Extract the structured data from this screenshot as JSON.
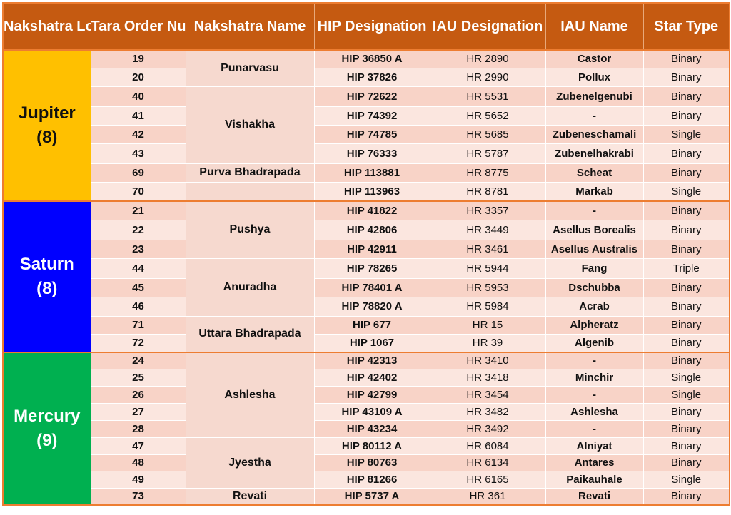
{
  "headers": {
    "lord": "Nakshatra Lord",
    "tara": "Tara Order Number",
    "nakshatra": "Nakshatra Name",
    "hip": "HIP Designation",
    "iau": "IAU Designation",
    "iau_name": "IAU Name",
    "type": "Star  Type"
  },
  "colors": {
    "header": "#c55a11",
    "jupiter": "#ffc000",
    "saturn": "#0000ff",
    "mercury": "#00b050",
    "row_odd": "#f8d3c7",
    "row_even": "#fbe6df",
    "group_border": "#ed7d31"
  },
  "groups": [
    {
      "lord": "Jupiter",
      "count": "(8)",
      "nakshatras": [
        {
          "name": "Punarvasu",
          "rows": [
            {
              "tara": "19",
              "hip": "HIP 36850 A",
              "iau": "HR 2890",
              "name": "Castor",
              "type": "Binary"
            },
            {
              "tara": "20",
              "hip": "HIP 37826",
              "iau": "HR 2990",
              "name": "Pollux",
              "type": "Binary"
            }
          ]
        },
        {
          "name": "Vishakha",
          "rows": [
            {
              "tara": "40",
              "hip": "HIP 72622",
              "iau": "HR 5531",
              "name": "Zubenelgenubi",
              "type": "Binary"
            },
            {
              "tara": "41",
              "hip": "HIP 74392",
              "iau": "HR 5652",
              "name": "-",
              "type": "Binary"
            },
            {
              "tara": "42",
              "hip": "HIP 74785",
              "iau": "HR 5685",
              "name": "Zubeneschamali",
              "type": "Single"
            },
            {
              "tara": "43",
              "hip": "HIP 76333",
              "iau": "HR 5787",
              "name": "Zubenelhakrabi",
              "type": "Binary"
            }
          ]
        },
        {
          "name": "Purva Bhadrapada",
          "rows": [
            {
              "tara": "69",
              "hip": "HIP 113881",
              "iau": "HR 8775",
              "name": "Scheat",
              "type": "Binary"
            }
          ]
        },
        {
          "name": "",
          "rows": [
            {
              "tara": "70",
              "hip": "HIP 113963",
              "iau": "HR 8781",
              "name": "Markab",
              "type": "Single"
            }
          ]
        }
      ]
    },
    {
      "lord": "Saturn",
      "count": "(8)",
      "nakshatras": [
        {
          "name": "Pushya",
          "rows": [
            {
              "tara": "21",
              "hip": "HIP 41822",
              "iau": "HR 3357",
              "name": "-",
              "type": "Binary"
            },
            {
              "tara": "22",
              "hip": "HIP 42806",
              "iau": "HR 3449",
              "name": "Asellus Borealis",
              "type": "Binary"
            },
            {
              "tara": "23",
              "hip": "HIP 42911",
              "iau": "HR 3461",
              "name": "Asellus Australis",
              "type": "Binary"
            }
          ]
        },
        {
          "name": "Anuradha",
          "rows": [
            {
              "tara": "44",
              "hip": "HIP 78265",
              "iau": "HR 5944",
              "name": "Fang",
              "type": "Triple"
            },
            {
              "tara": "45",
              "hip": "HIP 78401 A",
              "iau": "HR 5953",
              "name": "Dschubba",
              "type": "Binary"
            },
            {
              "tara": "46",
              "hip": "HIP 78820 A",
              "iau": "HR 5984",
              "name": "Acrab",
              "type": "Binary"
            }
          ]
        },
        {
          "name": "Uttara Bhadrapada",
          "rows": [
            {
              "tara": "71",
              "hip": "HIP 677",
              "iau": "HR 15",
              "name": "Alpheratz",
              "type": "Binary"
            },
            {
              "tara": "72",
              "hip": "HIP 1067",
              "iau": "HR 39",
              "name": "Algenib",
              "type": "Binary"
            }
          ]
        }
      ]
    },
    {
      "lord": "Mercury",
      "count": "(9)",
      "nakshatras": [
        {
          "name": "Ashlesha",
          "rows": [
            {
              "tara": "24",
              "hip": "HIP 42313",
              "iau": "HR 3410",
              "name": "-",
              "type": "Binary"
            },
            {
              "tara": "25",
              "hip": "HIP 42402",
              "iau": "HR 3418",
              "name": "Minchir",
              "type": "Single"
            },
            {
              "tara": "26",
              "hip": "HIP 42799",
              "iau": "HR 3454",
              "name": "-",
              "type": "Single"
            },
            {
              "tara": "27",
              "hip": "HIP 43109 A",
              "iau": "HR 3482",
              "name": "Ashlesha",
              "type": "Binary"
            },
            {
              "tara": "28",
              "hip": "HIP 43234",
              "iau": "HR 3492",
              "name": "-",
              "type": "Binary"
            }
          ]
        },
        {
          "name": "Jyestha",
          "rows": [
            {
              "tara": "47",
              "hip": "HIP 80112 A",
              "iau": "HR 6084",
              "name": "Alniyat",
              "type": "Binary"
            },
            {
              "tara": "48",
              "hip": "HIP 80763",
              "iau": "HR 6134",
              "name": "Antares",
              "type": "Binary"
            },
            {
              "tara": "49",
              "hip": "HIP 81266",
              "iau": "HR 6165",
              "name": "Paikauhale",
              "type": "Single"
            }
          ]
        },
        {
          "name": "Revati",
          "rows": [
            {
              "tara": "73",
              "hip": "HIP 5737 A",
              "iau": "HR 361",
              "name": "Revati",
              "type": "Binary"
            }
          ]
        }
      ]
    }
  ]
}
